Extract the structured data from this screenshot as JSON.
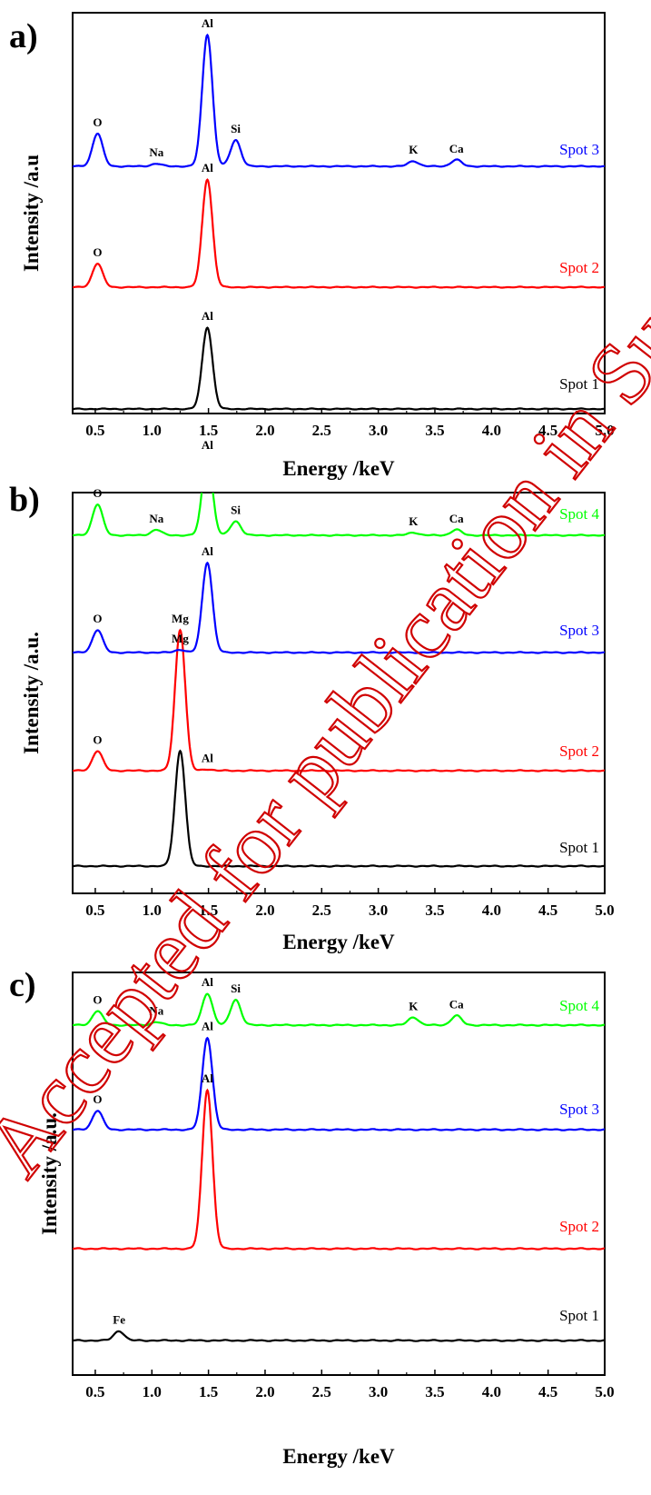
{
  "colors": {
    "spot1": "#000000",
    "spot2": "#ff0000",
    "spot3": "#0000ff",
    "spot4": "#00ff00",
    "watermark": "#d00000"
  },
  "watermark": "Accepted for publication in Surf. Coat. Technol.",
  "chart_data": [
    {
      "panel_label": "a)",
      "type": "line",
      "xlabel": "Energy /keV",
      "ylabel": "Intensity /a.u",
      "xlim": [
        0.3,
        5.0
      ],
      "xticks": [
        "0.5",
        "1.0",
        "1.5",
        "2.0",
        "2.5",
        "3.0",
        "3.5",
        "4.0",
        "4.5",
        "5.0"
      ],
      "series": [
        {
          "name": "Spot 1",
          "color": "#000000",
          "peaks": [
            {
              "label": "Al",
              "x": 1.49,
              "height": 0.62
            }
          ]
        },
        {
          "name": "Spot 2",
          "color": "#ff0000",
          "peaks": [
            {
              "label": "O",
              "x": 0.52,
              "height": 0.18
            },
            {
              "label": "Al",
              "x": 1.49,
              "height": 0.82
            }
          ]
        },
        {
          "name": "Spot 3",
          "color": "#0000ff",
          "peaks": [
            {
              "label": "O",
              "x": 0.52,
              "height": 0.25
            },
            {
              "label": "Na",
              "x": 1.04,
              "height": 0.02
            },
            {
              "label": "Al",
              "x": 1.49,
              "height": 1.0
            },
            {
              "label": "Si",
              "x": 1.74,
              "height": 0.2
            },
            {
              "label": "K",
              "x": 3.31,
              "height": 0.04
            },
            {
              "label": "Ca",
              "x": 3.69,
              "height": 0.05
            }
          ]
        }
      ]
    },
    {
      "panel_label": "b)",
      "type": "line",
      "xlabel": "Energy /keV",
      "ylabel": "Intensity /a.u.",
      "xlim": [
        0.3,
        5.0
      ],
      "xticks": [
        "0.5",
        "1.0",
        "1.5",
        "2.0",
        "2.5",
        "3.0",
        "3.5",
        "4.0",
        "4.5",
        "5.0"
      ],
      "series": [
        {
          "name": "Spot 1",
          "color": "#000000",
          "peaks": [
            {
              "label": "",
              "x": 1.25,
              "height": 0.82
            }
          ]
        },
        {
          "name": "Spot 2",
          "color": "#ff0000",
          "peaks": [
            {
              "label": "O",
              "x": 0.52,
              "height": 0.14
            },
            {
              "label": "Mg",
              "x": 1.25,
              "height": 1.0
            },
            {
              "label": "Al",
              "x": 1.49,
              "height": 0.01
            }
          ]
        },
        {
          "name": "Spot 3",
          "color": "#0000ff",
          "peaks": [
            {
              "label": "O",
              "x": 0.52,
              "height": 0.16
            },
            {
              "label": "Mg",
              "x": 1.25,
              "height": 0.02
            },
            {
              "label": "Al",
              "x": 1.49,
              "height": 0.64
            }
          ]
        },
        {
          "name": "Spot 4",
          "color": "#00ff00",
          "peaks": [
            {
              "label": "O",
              "x": 0.52,
              "height": 0.22
            },
            {
              "label": "Na",
              "x": 1.04,
              "height": 0.04
            },
            {
              "label": "Al",
              "x": 1.49,
              "height": 0.56
            },
            {
              "label": "Si",
              "x": 1.74,
              "height": 0.1
            },
            {
              "label": "K",
              "x": 3.31,
              "height": 0.02
            },
            {
              "label": "Ca",
              "x": 3.69,
              "height": 0.04
            }
          ]
        }
      ]
    },
    {
      "panel_label": "c)",
      "type": "line",
      "xlabel": "Energy /keV",
      "ylabel": "Intensity /a.u.",
      "xlim": [
        0.3,
        5.0
      ],
      "xticks": [
        "0.5",
        "1.0",
        "1.5",
        "2.0",
        "2.5",
        "3.0",
        "3.5",
        "4.0",
        "4.5",
        "5.0"
      ],
      "series": [
        {
          "name": "Spot 1",
          "color": "#000000",
          "peaks": [
            {
              "label": "Fe",
              "x": 0.71,
              "height": 0.06
            }
          ]
        },
        {
          "name": "Spot 2",
          "color": "#ff0000",
          "peaks": [
            {
              "label": "Al",
              "x": 1.49,
              "height": 1.0
            }
          ]
        },
        {
          "name": "Spot 3",
          "color": "#0000ff",
          "peaks": [
            {
              "label": "O",
              "x": 0.52,
              "height": 0.12
            },
            {
              "label": "Al",
              "x": 1.49,
              "height": 0.58
            }
          ]
        },
        {
          "name": "Spot 4",
          "color": "#00ff00",
          "peaks": [
            {
              "label": "O",
              "x": 0.52,
              "height": 0.09
            },
            {
              "label": "Na",
              "x": 1.04,
              "height": 0.02
            },
            {
              "label": "Al",
              "x": 1.49,
              "height": 0.2
            },
            {
              "label": "Si",
              "x": 1.74,
              "height": 0.16
            },
            {
              "label": "K",
              "x": 3.31,
              "height": 0.05
            },
            {
              "label": "Ca",
              "x": 3.69,
              "height": 0.06
            }
          ]
        }
      ]
    }
  ]
}
